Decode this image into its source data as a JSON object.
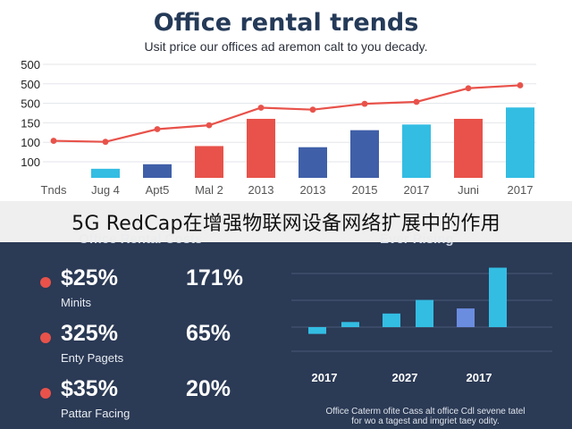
{
  "header": {
    "title": "Office rental trends",
    "subtitle": "Usit price our offices ad aremon calt to you decady."
  },
  "caption": "5G RedCap在增强物联网设备网络扩展中的作用",
  "colors": {
    "red": "#e8524a",
    "blue": "#3f5fa8",
    "cyan": "#33bde3",
    "navy": "#2b3a55"
  },
  "chart_data": [
    {
      "type": "bar",
      "categories": [
        "Tnds",
        "Jug 4",
        "Apt5",
        "Mal 2",
        "2013",
        "2013",
        "2015",
        "2017",
        "Juni",
        "2017"
      ],
      "yticks": [
        "500",
        "500",
        "500",
        "150",
        "100",
        "100"
      ],
      "ylim": [
        0,
        500
      ],
      "bars": [
        {
          "category": "Jug 4",
          "value": 40,
          "color": "cyan"
        },
        {
          "category": "Apt5",
          "value": 60,
          "color": "blue"
        },
        {
          "category": "Mal 2",
          "value": 140,
          "color": "red"
        },
        {
          "category": "2013",
          "value": 260,
          "color": "red"
        },
        {
          "category": "2013",
          "value": 135,
          "color": "blue"
        },
        {
          "category": "2015",
          "value": 210,
          "color": "blue"
        },
        {
          "category": "2017",
          "value": 235,
          "color": "cyan"
        },
        {
          "category": "Juni",
          "value": 260,
          "color": "red"
        },
        {
          "category": "2017",
          "value": 310,
          "color": "cyan"
        }
      ],
      "series": [
        {
          "type": "line",
          "color": "red",
          "values": [
            190,
            185,
            250,
            270,
            360,
            350,
            380,
            390,
            460,
            475
          ]
        }
      ]
    },
    {
      "type": "bar",
      "title": "Ever Rising",
      "categories": [
        "2017",
        "2027",
        "2017"
      ],
      "bars": [
        {
          "value": -8,
          "color": "cyan"
        },
        {
          "value": 6,
          "color": "cyan"
        },
        {
          "value": 16,
          "color": "cyan"
        },
        {
          "value": 32,
          "color": "cyan"
        },
        {
          "value": 22,
          "color": "blue"
        },
        {
          "value": 70,
          "color": "cyan"
        }
      ]
    }
  ],
  "panel": {
    "title": "Office Rental Costs",
    "stats": [
      {
        "value": "$25%",
        "label": "Minits",
        "pct": "171%"
      },
      {
        "value": "325%",
        "label": "Enty Pagets",
        "pct": "65%"
      },
      {
        "value": "$35%",
        "label": "Pattar Facing",
        "pct": "20%"
      }
    ]
  },
  "footnote": {
    "line1": "Office Caterm ofite Cass alt office Cdl sevene tatel",
    "line2": "for wo a tagest and imgriet taey odity."
  }
}
